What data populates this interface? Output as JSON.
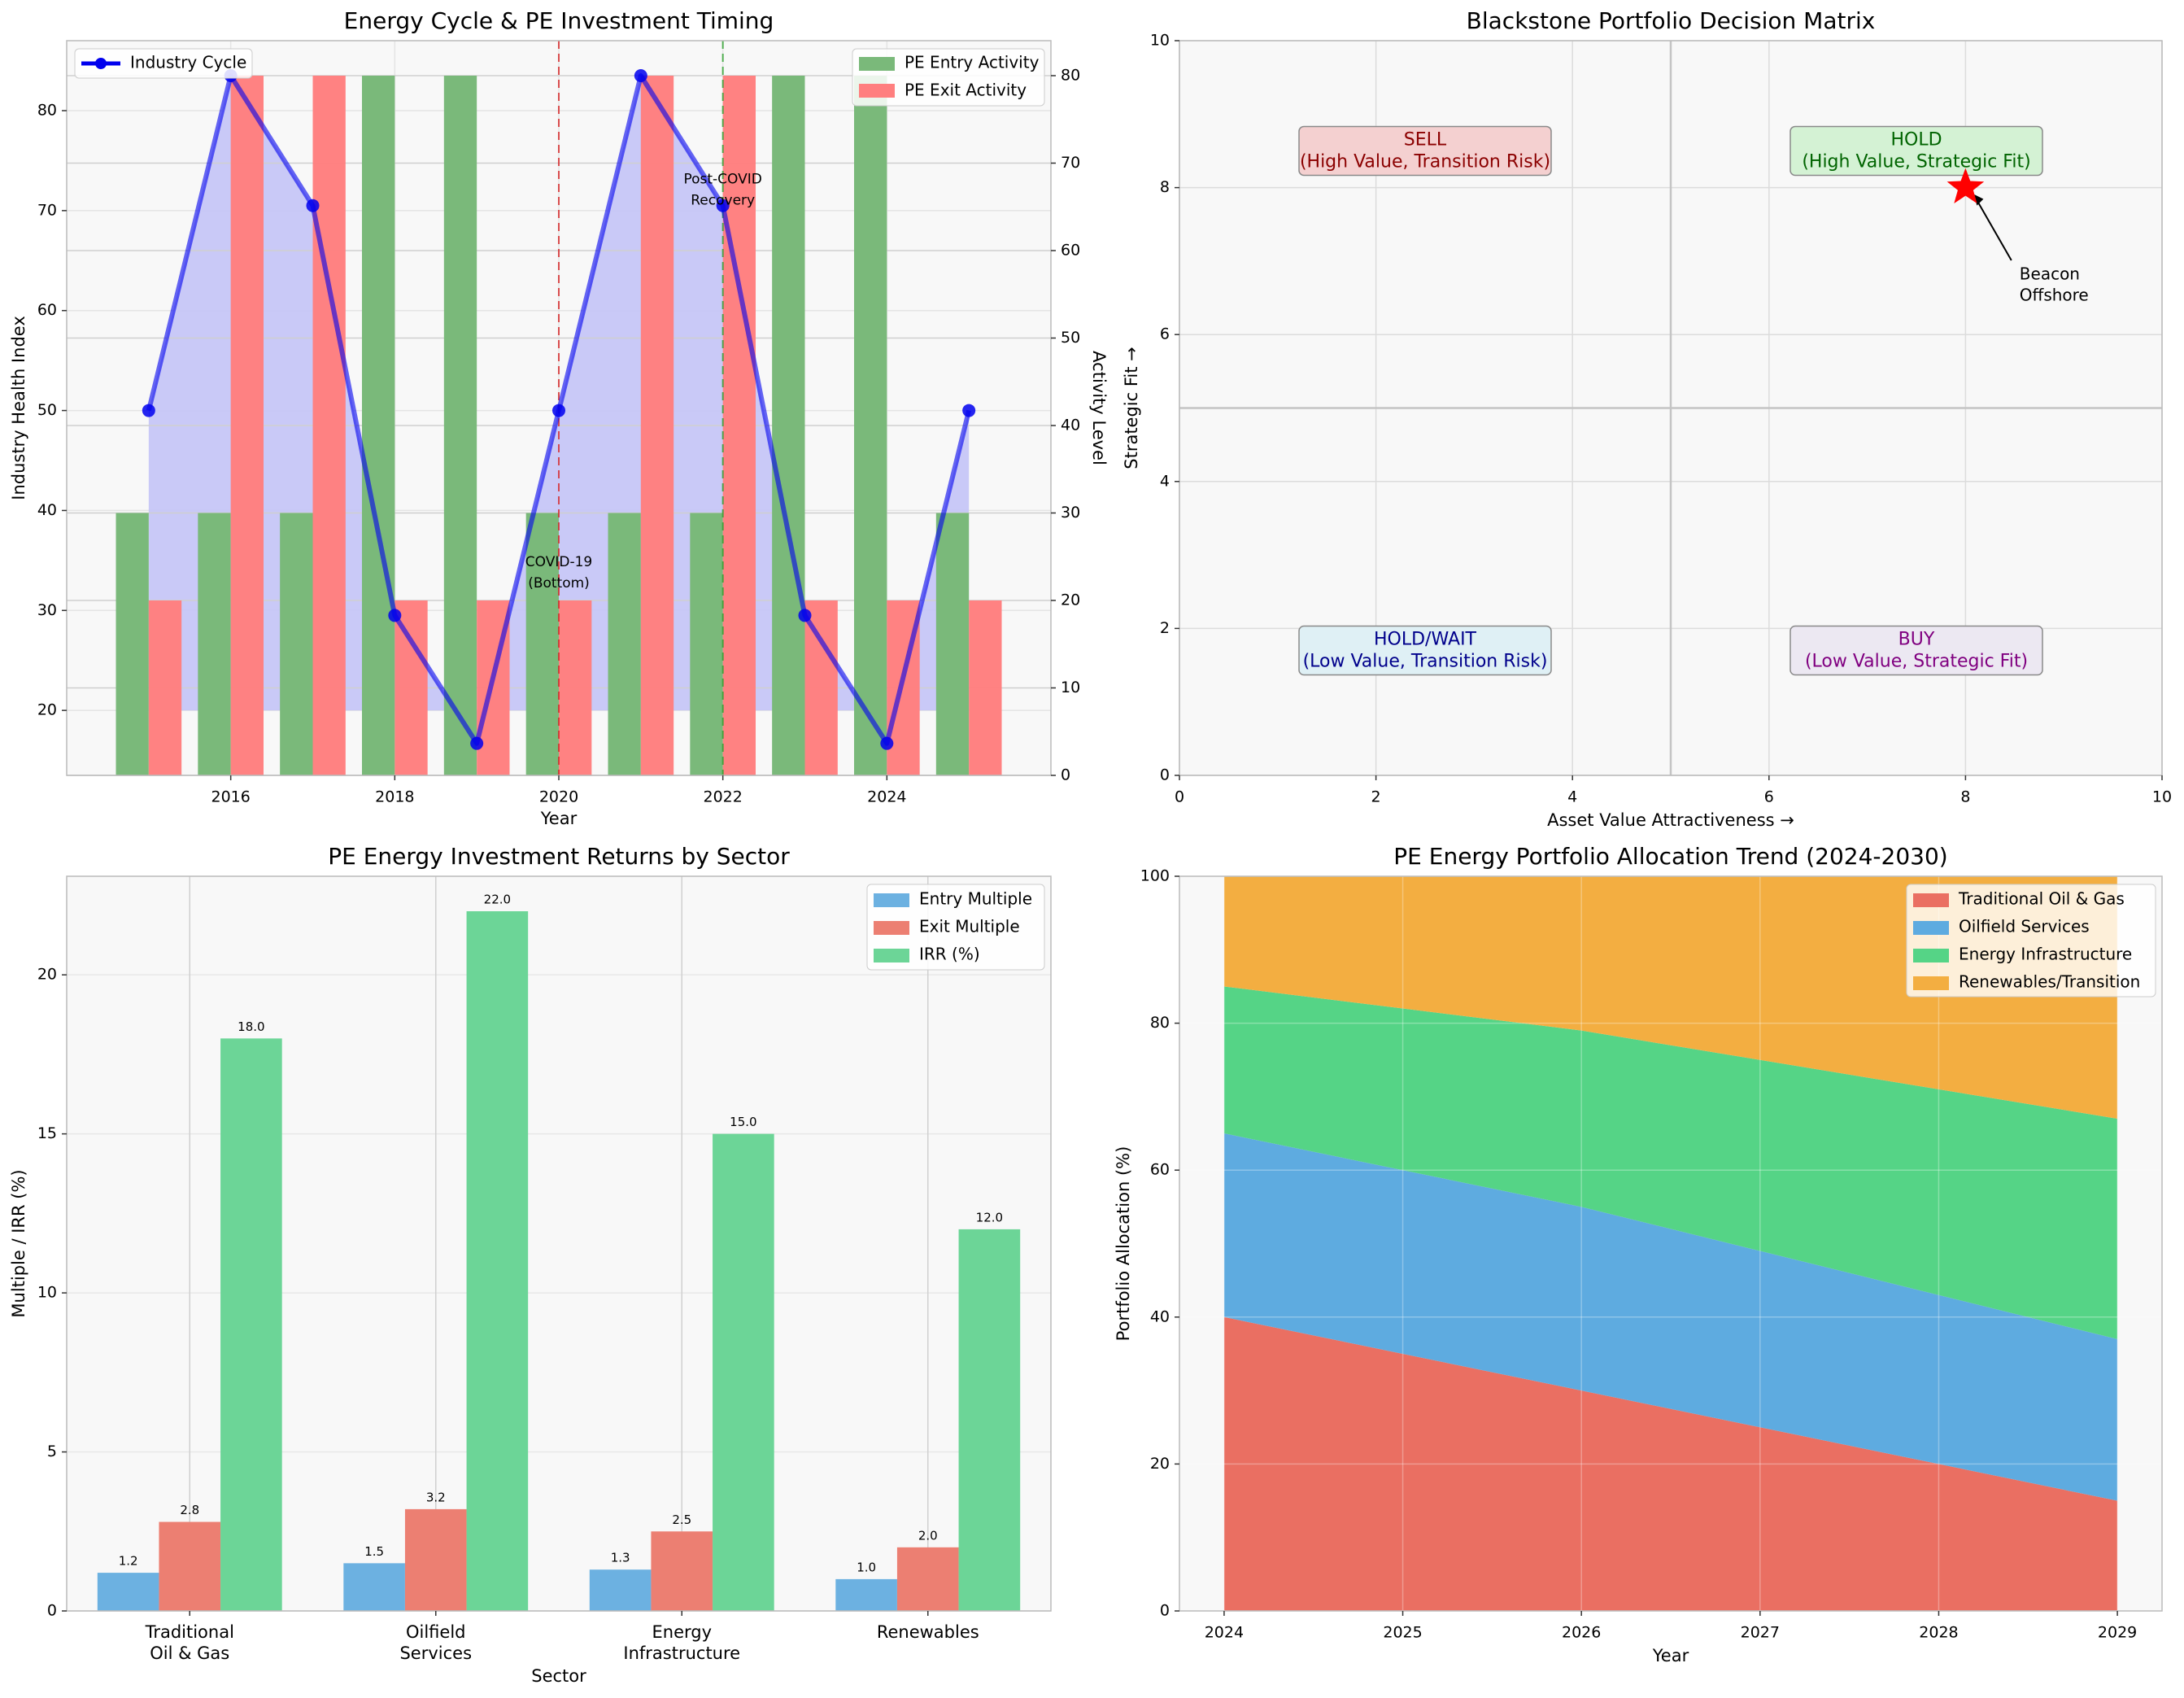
{
  "chart_data": [
    {
      "type": "bar+line",
      "title": "Energy Cycle & PE Investment Timing",
      "xlabel": "Year",
      "ylabel": "Industry Health Index",
      "y2label": "Activity Level",
      "x_ticks": [
        "2016",
        "2018",
        "2020",
        "2022",
        "2024"
      ],
      "y_ticks": [
        "20",
        "30",
        "40",
        "50",
        "60",
        "70",
        "80"
      ],
      "y2_ticks": [
        "0",
        "10",
        "20",
        "30",
        "40",
        "50",
        "60",
        "70",
        "80"
      ],
      "xlim": [
        2014.0,
        2026.0
      ],
      "ylim": [
        13.5,
        87.0
      ],
      "y2lim": [
        0,
        84
      ],
      "x": [
        2015,
        2016,
        2017,
        2018,
        2019,
        2020,
        2021,
        2022,
        2023,
        2024,
        2025
      ],
      "series": [
        {
          "name": "Industry Cycle",
          "axis": "left",
          "kind": "line",
          "values": [
            50,
            83.5,
            70.5,
            29.5,
            16.7,
            50,
            83.5,
            70.5,
            29.5,
            16.7,
            50
          ]
        },
        {
          "name": "PE Entry Activity",
          "axis": "right",
          "kind": "bar",
          "values": [
            30,
            30,
            30,
            80,
            80,
            30,
            30,
            30,
            80,
            80,
            30
          ]
        },
        {
          "name": "PE Exit Activity",
          "axis": "right",
          "kind": "bar",
          "values": [
            20,
            80,
            80,
            20,
            20,
            20,
            80,
            80,
            20,
            20,
            20
          ]
        }
      ],
      "legend_left": [
        "Industry Cycle"
      ],
      "legend_right": [
        "PE Entry Activity",
        "PE Exit Activity"
      ],
      "legend_placement": "top-left / top-right",
      "annotations": [
        {
          "x": 2020,
          "label": "COVID-19\n(Bottom)",
          "line_color": "#d62728"
        },
        {
          "x": 2022,
          "label": "Post-COVID\nRecovery",
          "line_color": "#2ca02c"
        }
      ],
      "colors": {
        "line": "#0000ee",
        "fill": "#c6c6f7",
        "entry": "#7ab97a",
        "exit": "#ff7f7f"
      }
    },
    {
      "type": "scatter",
      "title": "Blackstone Portfolio Decision Matrix",
      "xlabel": "Asset Value Attractiveness →",
      "ylabel": "Strategic Fit →",
      "xlim": [
        0,
        10
      ],
      "ylim": [
        0,
        10
      ],
      "x_ticks": [
        "0",
        "2",
        "4",
        "6",
        "8",
        "10"
      ],
      "y_ticks": [
        "0",
        "2",
        "4",
        "6",
        "8",
        "10"
      ],
      "midlines": {
        "x": 5,
        "y": 5
      },
      "quadrants": [
        {
          "x": 2.5,
          "y": 8.5,
          "line1": "SELL",
          "line2": "(High Value, Transition Risk)",
          "text_color": "#8b0000",
          "bg": "#f4d0d0"
        },
        {
          "x": 7.5,
          "y": 8.5,
          "line1": "HOLD",
          "line2": "(High Value, Strategic Fit)",
          "text_color": "#006400",
          "bg": "#d4f2d4"
        },
        {
          "x": 2.5,
          "y": 1.7,
          "line1": "HOLD/WAIT",
          "line2": "(Low Value, Transition Risk)",
          "text_color": "#00008b",
          "bg": "#dff0f5"
        },
        {
          "x": 7.5,
          "y": 1.7,
          "line1": "BUY",
          "line2": "(Low Value, Strategic Fit)",
          "text_color": "#800080",
          "bg": "#ece8f2"
        }
      ],
      "point": {
        "x": 8,
        "y": 8,
        "marker": "star",
        "color": "#ff0000",
        "label_line1": "Beacon",
        "label_line2": "Offshore",
        "label_x": 8.5,
        "label_y": 6.7
      }
    },
    {
      "type": "bar",
      "title": "PE Energy Investment Returns by Sector",
      "xlabel": "Sector",
      "ylabel": "Multiple / IRR (%)",
      "ylim": [
        0,
        23.1
      ],
      "y_ticks": [
        "0",
        "5",
        "10",
        "15",
        "20"
      ],
      "categories": [
        [
          "Traditional",
          "Oil & Gas"
        ],
        [
          "Oilfield",
          "Services"
        ],
        [
          "Energy",
          "Infrastructure"
        ],
        [
          "Renewables"
        ]
      ],
      "series": [
        {
          "name": "Entry Multiple",
          "values": [
            1.2,
            1.5,
            1.3,
            1.0
          ],
          "labels": [
            "1.2",
            "1.5",
            "1.3",
            "1.0"
          ],
          "color": "#6cb1e1"
        },
        {
          "name": "Exit Multiple",
          "values": [
            2.8,
            3.2,
            2.5,
            2.0
          ],
          "labels": [
            "2.8",
            "3.2",
            "2.5",
            "2.0"
          ],
          "color": "#ec7f72"
        },
        {
          "name": "IRR (%)",
          "values": [
            18.0,
            22.0,
            15.0,
            12.0
          ],
          "labels": [
            "18.0",
            "22.0",
            "15.0",
            "12.0"
          ],
          "color": "#6cd597"
        }
      ],
      "legend_placement": "top-right"
    },
    {
      "type": "area",
      "title": "PE Energy Portfolio Allocation Trend (2024-2030)",
      "xlabel": "Year",
      "ylabel": "Portfolio Allocation (%)",
      "x": [
        2024,
        2025,
        2026,
        2027,
        2028,
        2029
      ],
      "x_ticks": [
        "2024",
        "2025",
        "2026",
        "2027",
        "2028",
        "2029"
      ],
      "xlim": [
        2023.75,
        2029.25
      ],
      "ylim": [
        0,
        100
      ],
      "y_ticks": [
        "0",
        "20",
        "40",
        "60",
        "80",
        "100"
      ],
      "series": [
        {
          "name": "Traditional Oil & Gas",
          "values": [
            40,
            35,
            30,
            25,
            20,
            15
          ],
          "color": "#ea6f62"
        },
        {
          "name": "Oilfield Services",
          "values": [
            25,
            25,
            25,
            24,
            23,
            22
          ],
          "color": "#5eabe0"
        },
        {
          "name": "Energy Infrastructure",
          "values": [
            20,
            22,
            24,
            26,
            28,
            30
          ],
          "color": "#55d486"
        },
        {
          "name": "Renewables/Transition",
          "values": [
            15,
            18,
            21,
            25,
            29,
            33
          ],
          "color": "#f3ae41"
        }
      ],
      "stacked": true,
      "legend_placement": "top-right"
    }
  ]
}
